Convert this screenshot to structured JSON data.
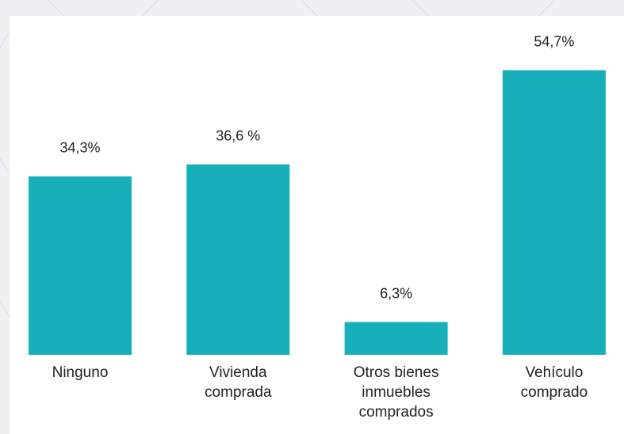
{
  "chart_data": {
    "type": "bar",
    "categories": [
      "Ninguno",
      "Vivienda comprada",
      "Otros bienes inmuebles comprados",
      "Vehículo comprado"
    ],
    "values": [
      34.3,
      36.6,
      6.3,
      54.7
    ],
    "value_labels": [
      "34,3%",
      "36,6 %",
      "6,3%",
      "54,7%"
    ],
    "color": "#17afb9"
  }
}
